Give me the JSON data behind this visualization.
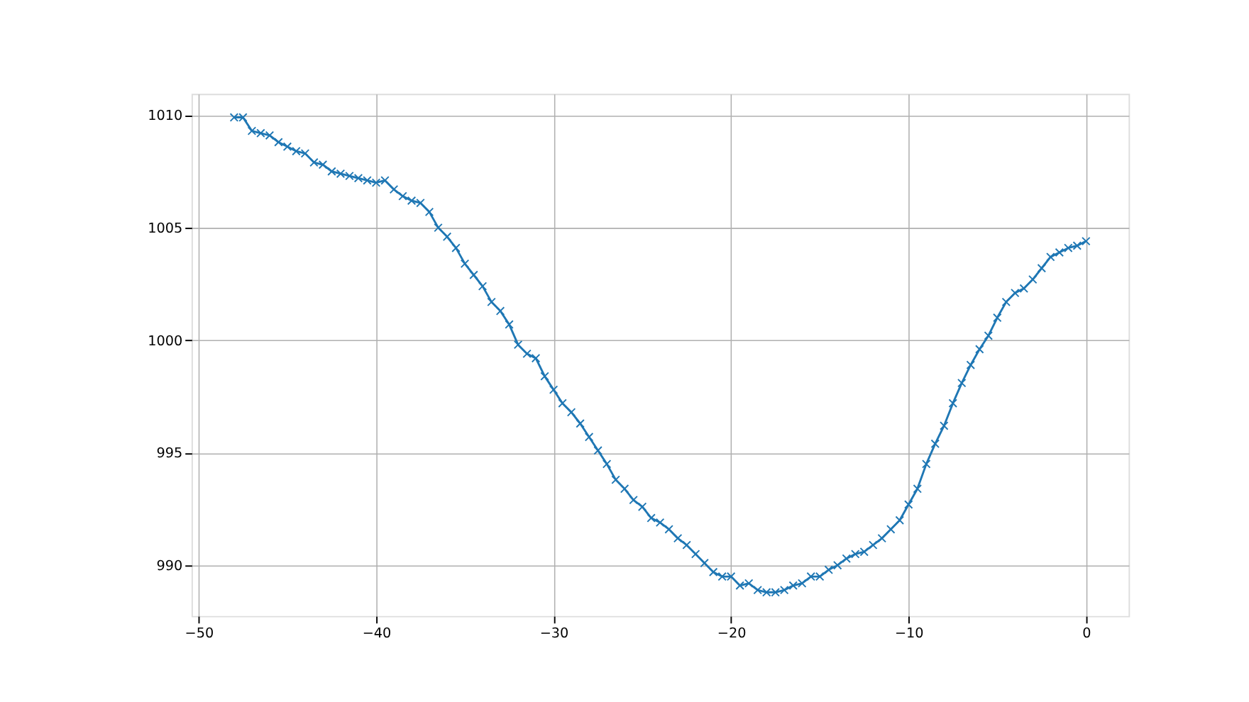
{
  "chart_data": {
    "type": "line",
    "x": [
      -48,
      -47.5,
      -47,
      -46.5,
      -46,
      -45.5,
      -45,
      -44.5,
      -44,
      -43.5,
      -43,
      -42.5,
      -42,
      -41.5,
      -41,
      -40.5,
      -40,
      -39.5,
      -39,
      -38.5,
      -38,
      -37.5,
      -37,
      -36.5,
      -36,
      -35.5,
      -35,
      -34.5,
      -34,
      -33.5,
      -33,
      -32.5,
      -32,
      -31.5,
      -31,
      -30.5,
      -30,
      -29.5,
      -29,
      -28.5,
      -28,
      -27.5,
      -27,
      -26.5,
      -26,
      -25.5,
      -25,
      -24.5,
      -24,
      -23.5,
      -23,
      -22.5,
      -22,
      -21.5,
      -21,
      -20.5,
      -20,
      -19.5,
      -19,
      -18.5,
      -18,
      -17.5,
      -17,
      -16.5,
      -16,
      -15.5,
      -15,
      -14.5,
      -14,
      -13.5,
      -13,
      -12.5,
      -12,
      -11.5,
      -11,
      -10.5,
      -10,
      -9.5,
      -9,
      -8.5,
      -8,
      -7.5,
      -7,
      -6.5,
      -6,
      -5.5,
      -5,
      -4.5,
      -4,
      -3.5,
      -3,
      -2.5,
      -2,
      -1.5,
      -1,
      -0.5,
      0
    ],
    "series": [
      {
        "color": "#1f77b4",
        "values": [
          1009.9,
          1009.9,
          1009.3,
          1009.2,
          1009.1,
          1008.8,
          1008.6,
          1008.4,
          1008.3,
          1007.9,
          1007.8,
          1007.5,
          1007.4,
          1007.3,
          1007.2,
          1007.1,
          1007.0,
          1007.1,
          1006.7,
          1006.4,
          1006.2,
          1006.1,
          1005.7,
          1005.0,
          1004.6,
          1004.1,
          1003.4,
          1002.9,
          1002.4,
          1001.7,
          1001.3,
          1000.7,
          999.8,
          999.4,
          999.2,
          998.4,
          997.8,
          997.2,
          996.8,
          996.3,
          995.7,
          995.1,
          994.5,
          993.8,
          993.4,
          992.9,
          992.6,
          992.1,
          991.9,
          991.6,
          991.2,
          990.9,
          990.5,
          990.1,
          989.7,
          989.5,
          989.5,
          989.1,
          989.2,
          988.9,
          988.8,
          988.8,
          988.9,
          989.1,
          989.2,
          989.5,
          989.5,
          989.8,
          990.0,
          990.3,
          990.5,
          990.6,
          990.9,
          991.2,
          991.6,
          992.0,
          992.7,
          993.4,
          994.5,
          995.4,
          996.2,
          997.2,
          998.1,
          998.9,
          999.6,
          1000.2,
          1001.0,
          1001.7,
          1002.1,
          1002.3,
          1002.7,
          1003.2,
          1003.7,
          1003.9,
          1004.1,
          1004.2,
          1004.4
        ]
      }
    ],
    "xlim": [
      -50.4,
      2.4
    ],
    "xticks": [
      -50,
      -40,
      -30,
      -20,
      -10,
      0
    ],
    "ylim": [
      987.75,
      1010.95
    ],
    "yticks": [
      990,
      995,
      1000,
      1005,
      1010
    ],
    "grid": true,
    "marker": "cross",
    "line_style": "solid"
  }
}
